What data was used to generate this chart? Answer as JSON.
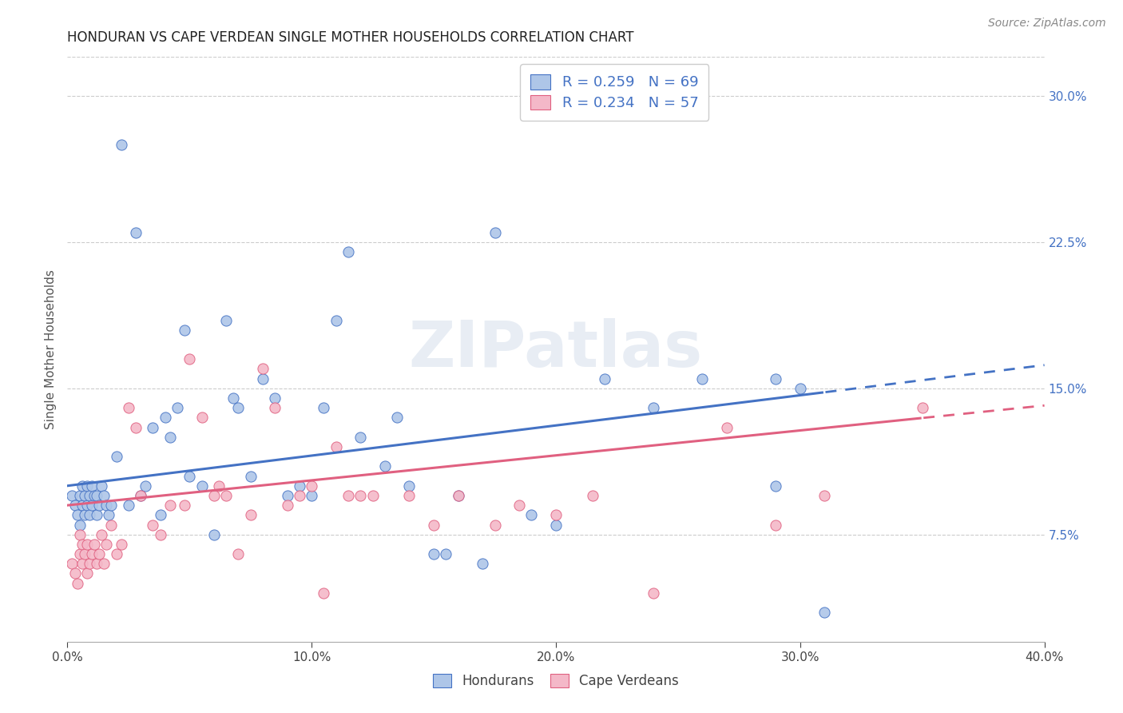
{
  "title": "HONDURAN VS CAPE VERDEAN SINGLE MOTHER HOUSEHOLDS CORRELATION CHART",
  "source": "Source: ZipAtlas.com",
  "ylabel": "Single Mother Households",
  "xlim": [
    0.0,
    0.4
  ],
  "ylim": [
    0.02,
    0.32
  ],
  "xticks": [
    0.0,
    0.1,
    0.2,
    0.3,
    0.4
  ],
  "yticks": [
    0.075,
    0.15,
    0.225,
    0.3
  ],
  "honduran_color": "#aec6e8",
  "capeverdean_color": "#f4b8c8",
  "honduran_line_color": "#4472c4",
  "capeverdean_line_color": "#e06080",
  "R_honduran": 0.259,
  "N_honduran": 69,
  "R_capeverdean": 0.234,
  "N_capeverdean": 57,
  "watermark": "ZIPatlas",
  "honduran_x": [
    0.002,
    0.003,
    0.004,
    0.005,
    0.005,
    0.006,
    0.006,
    0.007,
    0.007,
    0.008,
    0.008,
    0.009,
    0.009,
    0.01,
    0.01,
    0.011,
    0.012,
    0.012,
    0.013,
    0.014,
    0.015,
    0.016,
    0.017,
    0.018,
    0.02,
    0.022,
    0.025,
    0.028,
    0.03,
    0.032,
    0.035,
    0.038,
    0.04,
    0.042,
    0.045,
    0.048,
    0.05,
    0.055,
    0.06,
    0.065,
    0.068,
    0.07,
    0.075,
    0.08,
    0.085,
    0.09,
    0.095,
    0.1,
    0.105,
    0.11,
    0.115,
    0.12,
    0.13,
    0.135,
    0.14,
    0.15,
    0.155,
    0.16,
    0.17,
    0.175,
    0.19,
    0.2,
    0.22,
    0.24,
    0.26,
    0.29,
    0.29,
    0.3,
    0.31
  ],
  "honduran_y": [
    0.095,
    0.09,
    0.085,
    0.095,
    0.08,
    0.09,
    0.1,
    0.085,
    0.095,
    0.09,
    0.1,
    0.085,
    0.095,
    0.09,
    0.1,
    0.095,
    0.085,
    0.095,
    0.09,
    0.1,
    0.095,
    0.09,
    0.085,
    0.09,
    0.115,
    0.275,
    0.09,
    0.23,
    0.095,
    0.1,
    0.13,
    0.085,
    0.135,
    0.125,
    0.14,
    0.18,
    0.105,
    0.1,
    0.075,
    0.185,
    0.145,
    0.14,
    0.105,
    0.155,
    0.145,
    0.095,
    0.1,
    0.095,
    0.14,
    0.185,
    0.22,
    0.125,
    0.11,
    0.135,
    0.1,
    0.065,
    0.065,
    0.095,
    0.06,
    0.23,
    0.085,
    0.08,
    0.155,
    0.14,
    0.155,
    0.155,
    0.1,
    0.15,
    0.035
  ],
  "capeverdean_x": [
    0.002,
    0.003,
    0.004,
    0.005,
    0.005,
    0.006,
    0.006,
    0.007,
    0.008,
    0.008,
    0.009,
    0.01,
    0.011,
    0.012,
    0.013,
    0.014,
    0.015,
    0.016,
    0.018,
    0.02,
    0.022,
    0.025,
    0.028,
    0.03,
    0.035,
    0.038,
    0.042,
    0.048,
    0.05,
    0.055,
    0.06,
    0.062,
    0.065,
    0.07,
    0.075,
    0.08,
    0.085,
    0.09,
    0.095,
    0.1,
    0.105,
    0.11,
    0.115,
    0.12,
    0.125,
    0.14,
    0.15,
    0.16,
    0.175,
    0.185,
    0.2,
    0.215,
    0.24,
    0.27,
    0.29,
    0.31,
    0.35
  ],
  "capeverdean_y": [
    0.06,
    0.055,
    0.05,
    0.065,
    0.075,
    0.06,
    0.07,
    0.065,
    0.055,
    0.07,
    0.06,
    0.065,
    0.07,
    0.06,
    0.065,
    0.075,
    0.06,
    0.07,
    0.08,
    0.065,
    0.07,
    0.14,
    0.13,
    0.095,
    0.08,
    0.075,
    0.09,
    0.09,
    0.165,
    0.135,
    0.095,
    0.1,
    0.095,
    0.065,
    0.085,
    0.16,
    0.14,
    0.09,
    0.095,
    0.1,
    0.045,
    0.12,
    0.095,
    0.095,
    0.095,
    0.095,
    0.08,
    0.095,
    0.08,
    0.09,
    0.085,
    0.095,
    0.045,
    0.13,
    0.08,
    0.095,
    0.14
  ]
}
